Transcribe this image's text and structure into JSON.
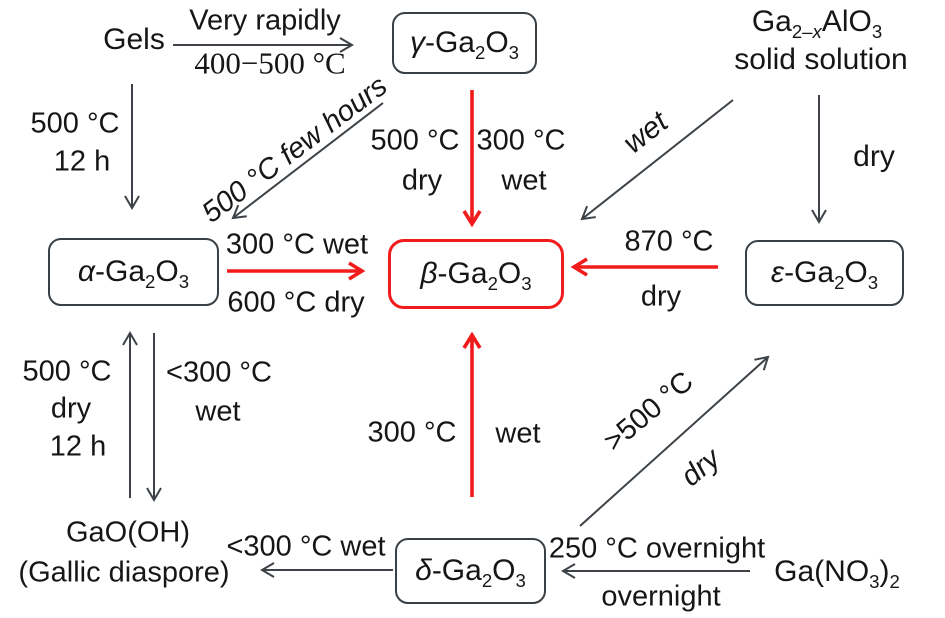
{
  "colors": {
    "red": "#f21b1b",
    "arrow": "#3c4247",
    "text": "#161616"
  },
  "nodes": {
    "gels": {
      "label": "Gels"
    },
    "gamma": {
      "formula": "*γ*-Ga{2}O{3}"
    },
    "solid_solution": {
      "formula": "Ga{2–*x*}AlO{3}",
      "line2": "solid solution"
    },
    "alpha": {
      "formula": "*α*-Ga{2}O{3}"
    },
    "beta": {
      "formula": "*β*-Ga{2}O{3}"
    },
    "epsilon": {
      "formula": "*ε*-Ga{2}O{3}"
    },
    "delta": {
      "formula": "*δ*-Ga{2}O{3}"
    },
    "gaooh": {
      "line1": "GaO(OH)",
      "line2": "(Gallic diaspore)"
    },
    "ga_nitrate": {
      "formula": "Ga(NO{3}){2}"
    }
  },
  "edges": {
    "gels_to_gamma": {
      "above": "Very rapidly",
      "below": "400−500 °C"
    },
    "gels_to_alpha": {
      "line1": "500 °C",
      "line2": "12 h"
    },
    "gamma_to_alpha": {
      "label": "500 °C few hours"
    },
    "gamma_to_beta": {
      "left1": "500 °C",
      "left2": "dry",
      "right1": "300 °C",
      "right2": "wet"
    },
    "solidsolution_to_beta": {
      "label": "wet"
    },
    "solidsolution_to_epsilon": {
      "label": "dry"
    },
    "alpha_to_beta": {
      "above": "300 °C wet",
      "below": "600 °C dry"
    },
    "epsilon_to_beta": {
      "above": "870 °C",
      "below": "dry"
    },
    "alpha_gaooh_up": {
      "line1": "500 °C",
      "line2": "dry",
      "line3": "12 h"
    },
    "alpha_gaooh_down": {
      "line1": "<300 °C",
      "line2": "wet"
    },
    "delta_to_beta": {
      "left": "300 °C",
      "right": "wet"
    },
    "delta_to_epsilon": {
      "above": ">500 °C",
      "below": "dry"
    },
    "delta_to_gaooh": {
      "label": "<300 °C wet"
    },
    "nitrate_to_delta": {
      "above": "250 °C overnight",
      "below": "overnight"
    }
  }
}
